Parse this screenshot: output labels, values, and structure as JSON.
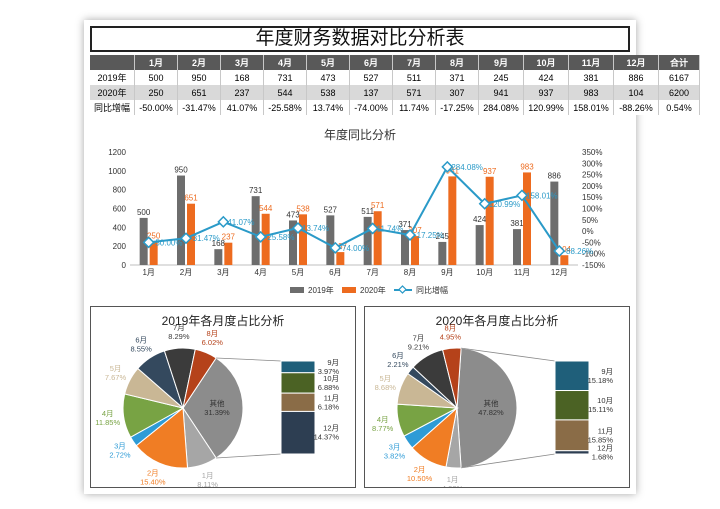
{
  "report_title": "年度财务数据对比分析表",
  "table": {
    "header": [
      "",
      "1月",
      "2月",
      "3月",
      "4月",
      "5月",
      "6月",
      "7月",
      "8月",
      "9月",
      "10月",
      "11月",
      "12月",
      "合计"
    ],
    "rows": [
      [
        "2019年",
        "500",
        "950",
        "168",
        "731",
        "473",
        "527",
        "511",
        "371",
        "245",
        "424",
        "381",
        "886",
        "6167"
      ],
      [
        "2020年",
        "250",
        "651",
        "237",
        "544",
        "538",
        "137",
        "571",
        "307",
        "941",
        "937",
        "983",
        "104",
        "6200"
      ],
      [
        "同比增幅",
        "-50.00%",
        "-31.47%",
        "41.07%",
        "-25.58%",
        "13.74%",
        "-74.00%",
        "11.74%",
        "-17.25%",
        "284.08%",
        "120.99%",
        "158.01%",
        "-88.26%",
        "0.54%"
      ]
    ]
  },
  "colors": {
    "series_2019": "#6d6d6d",
    "series_2020": "#ed6b1f",
    "growth_line": "#2a9ac8",
    "header_bg": "#595959"
  },
  "chart_data": [
    {
      "type": "bar",
      "title": "年度同比分析",
      "categories": [
        "1月",
        "2月",
        "3月",
        "4月",
        "5月",
        "6月",
        "7月",
        "8月",
        "9月",
        "10月",
        "11月",
        "12月"
      ],
      "series": [
        {
          "name": "2019年",
          "values": [
            500,
            950,
            168,
            731,
            473,
            527,
            511,
            371,
            245,
            424,
            381,
            886
          ],
          "labels": [
            "500",
            "950",
            "168",
            "731",
            "473",
            "527",
            "511",
            "371",
            "245",
            "424",
            "381",
            "886"
          ]
        },
        {
          "name": "2020年",
          "values": [
            250,
            651,
            237,
            544,
            538,
            137,
            571,
            307,
            941,
            937,
            983,
            104
          ],
          "labels": [
            "250",
            "651",
            "237",
            "544",
            "538",
            "137",
            "571",
            "307",
            "941",
            "937",
            "983",
            "104"
          ]
        },
        {
          "name": "同比增幅",
          "type": "line",
          "axis": "right",
          "values": [
            -50.0,
            -31.47,
            41.07,
            -25.58,
            13.74,
            -74.0,
            11.74,
            -17.25,
            284.08,
            120.99,
            158.01,
            -88.26
          ],
          "labels": [
            "-50.00%",
            "-31.47%",
            "41.07%",
            "-25.58%",
            "13.74%",
            "-74.00%",
            "11.74%",
            "-17.25%",
            "284.08%",
            "120.99%",
            "158.01%",
            "-88.26%"
          ]
        }
      ],
      "ylim": [
        0,
        1200
      ],
      "yticks": [
        "0",
        "200",
        "400",
        "600",
        "800",
        "1000",
        "1200"
      ],
      "y2lim": [
        -150,
        350
      ],
      "y2ticks": [
        "-150%",
        "-100%",
        "-50%",
        "0%",
        "50%",
        "100%",
        "150%",
        "200%",
        "250%",
        "300%",
        "350%"
      ],
      "legend": "bottom",
      "grid": false
    },
    {
      "type": "pie",
      "title": "2019年各月度占比分析",
      "slices": [
        {
          "label": "1月",
          "pct": "8.11%",
          "value": 8.11,
          "color": "#a6a6a6"
        },
        {
          "label": "2月",
          "pct": "15.40%",
          "value": 15.4,
          "color": "#f07d24"
        },
        {
          "label": "3月",
          "pct": "2.72%",
          "value": 2.72,
          "color": "#2e9bd6"
        },
        {
          "label": "4月",
          "pct": "11.85%",
          "value": 11.85,
          "color": "#78a344"
        },
        {
          "label": "5月",
          "pct": "7.67%",
          "value": 7.67,
          "color": "#c9b795"
        },
        {
          "label": "6月",
          "pct": "8.55%",
          "value": 8.55,
          "color": "#34495e"
        },
        {
          "label": "7月",
          "pct": "8.29%",
          "value": 8.29,
          "color": "#3b3b3b"
        },
        {
          "label": "8月",
          "pct": "6.02%",
          "value": 6.02,
          "color": "#b5421a"
        },
        {
          "label": "其他",
          "pct": "31.39%",
          "value": 31.39,
          "color": "#8c8c8c"
        }
      ],
      "breakout": [
        {
          "label": "9月",
          "pct": "3.97%",
          "value": 3.97,
          "color": "#1f5f7a"
        },
        {
          "label": "10月",
          "pct": "6.88%",
          "value": 6.88,
          "color": "#4b6224"
        },
        {
          "label": "11月",
          "pct": "6.18%",
          "value": 6.18,
          "color": "#8a6c47"
        },
        {
          "label": "12月",
          "pct": "14.37%",
          "value": 14.37,
          "color": "#2d3e52"
        }
      ]
    },
    {
      "type": "pie",
      "title": "2020年各月度占比分析",
      "slices": [
        {
          "label": "1月",
          "pct": "4.03%",
          "value": 4.03,
          "color": "#a6a6a6"
        },
        {
          "label": "2月",
          "pct": "10.50%",
          "value": 10.5,
          "color": "#f07d24"
        },
        {
          "label": "3月",
          "pct": "3.82%",
          "value": 3.82,
          "color": "#2e9bd6"
        },
        {
          "label": "4月",
          "pct": "8.77%",
          "value": 8.77,
          "color": "#78a344"
        },
        {
          "label": "5月",
          "pct": "8.68%",
          "value": 8.68,
          "color": "#c9b795"
        },
        {
          "label": "6月",
          "pct": "2.21%",
          "value": 2.21,
          "color": "#34495e"
        },
        {
          "label": "7月",
          "pct": "9.21%",
          "value": 9.21,
          "color": "#3b3b3b"
        },
        {
          "label": "8月",
          "pct": "4.95%",
          "value": 4.95,
          "color": "#b5421a"
        },
        {
          "label": "其他",
          "pct": "47.82%",
          "value": 47.82,
          "color": "#8c8c8c"
        }
      ],
      "breakout": [
        {
          "label": "9月",
          "pct": "15.18%",
          "value": 15.18,
          "color": "#1f5f7a"
        },
        {
          "label": "10月",
          "pct": "15.11%",
          "value": 15.11,
          "color": "#4b6224"
        },
        {
          "label": "11月",
          "pct": "15.85%",
          "value": 15.85,
          "color": "#8a6c47"
        },
        {
          "label": "12月",
          "pct": "1.68%",
          "value": 1.68,
          "color": "#2d3e52"
        }
      ]
    }
  ]
}
